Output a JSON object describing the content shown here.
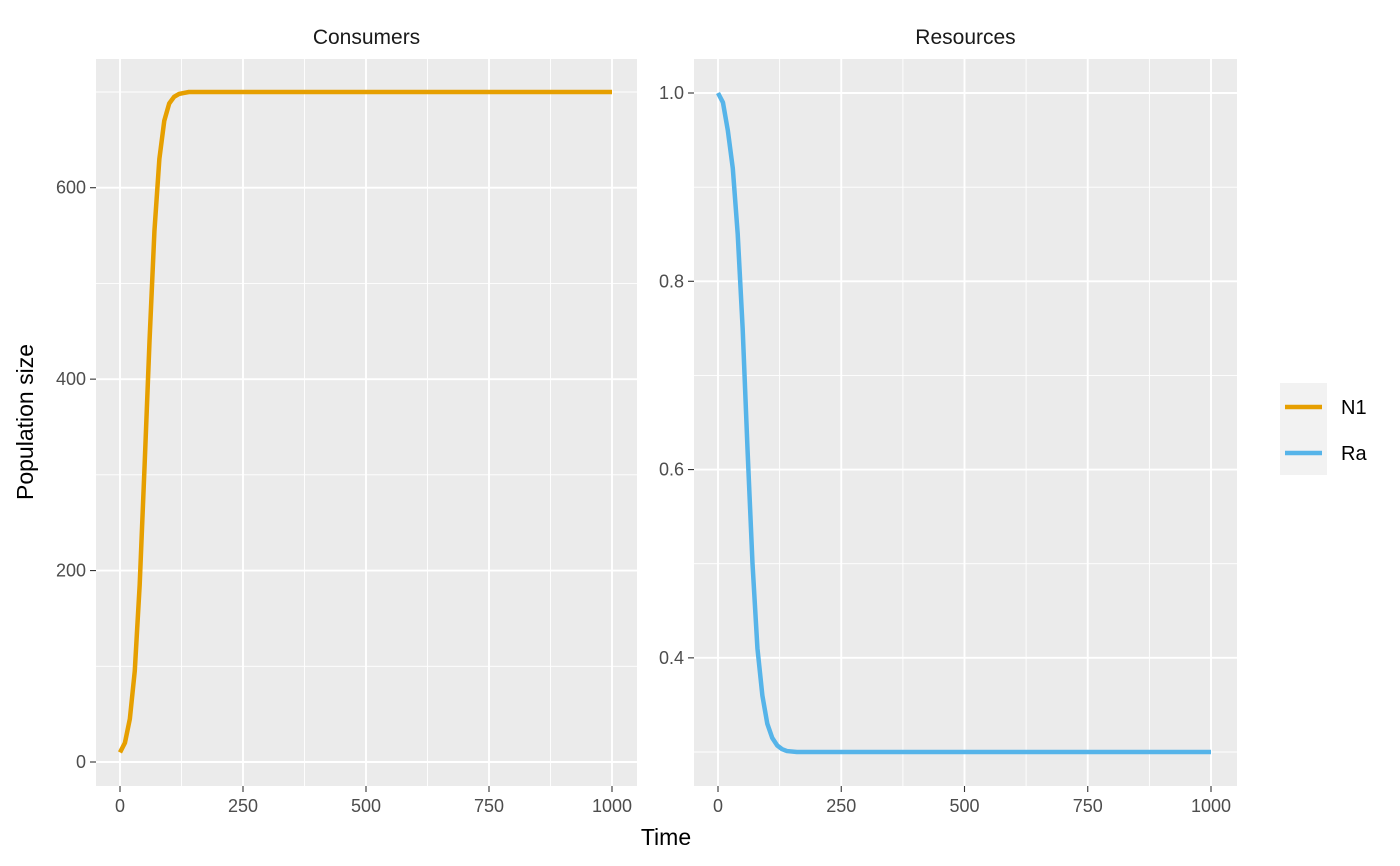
{
  "chart_data": {
    "type": "line",
    "xlabel": "Time",
    "ylabel": "Population size",
    "legend": {
      "placement": "right",
      "entries": [
        {
          "name": "N1",
          "color": "#E69F00"
        },
        {
          "name": "Ra",
          "color": "#56B4E9"
        }
      ]
    },
    "grid": true,
    "panels": [
      {
        "title": "Consumers",
        "xlim": [
          0,
          1000
        ],
        "ylim": [
          0,
          700
        ],
        "x_ticks": [
          0,
          250,
          500,
          750,
          1000
        ],
        "x_tick_labels": [
          "0",
          "250",
          "500",
          "750",
          "1000"
        ],
        "y_ticks": [
          0,
          200,
          400,
          600
        ],
        "y_tick_labels": [
          "0",
          "200",
          "400",
          "600"
        ],
        "series": [
          {
            "name": "N1",
            "color": "#E69F00",
            "x": [
              0,
              10,
              20,
              30,
              40,
              50,
              60,
              70,
              80,
              90,
              100,
              110,
              120,
              130,
              140,
              160,
              200,
              300,
              400,
              500,
              600,
              700,
              800,
              900,
              1000
            ],
            "y": [
              10,
              20,
              45,
              95,
              185,
              310,
              440,
              555,
              630,
              670,
              688,
              695,
              698,
              699,
              700,
              700,
              700,
              700,
              700,
              700,
              700,
              700,
              700,
              700,
              700
            ]
          }
        ]
      },
      {
        "title": "Resources",
        "xlim": [
          0,
          1000
        ],
        "ylim": [
          0.3,
          1.0
        ],
        "x_ticks": [
          0,
          250,
          500,
          750,
          1000
        ],
        "x_tick_labels": [
          "0",
          "250",
          "500",
          "750",
          "1000"
        ],
        "y_ticks": [
          0.4,
          0.6,
          0.8,
          1.0
        ],
        "y_tick_labels": [
          "0.4",
          "0.6",
          "0.8",
          "1.0"
        ],
        "series": [
          {
            "name": "Ra",
            "color": "#56B4E9",
            "x": [
              0,
              10,
              20,
              30,
              40,
              50,
              60,
              70,
              80,
              90,
              100,
              110,
              120,
              130,
              140,
              160,
              200,
              300,
              400,
              500,
              600,
              700,
              800,
              900,
              1000
            ],
            "y": [
              1.0,
              0.99,
              0.96,
              0.92,
              0.85,
              0.75,
              0.62,
              0.5,
              0.41,
              0.36,
              0.33,
              0.315,
              0.307,
              0.303,
              0.301,
              0.3,
              0.3,
              0.3,
              0.3,
              0.3,
              0.3,
              0.3,
              0.3,
              0.3,
              0.3
            ]
          }
        ]
      }
    ]
  }
}
